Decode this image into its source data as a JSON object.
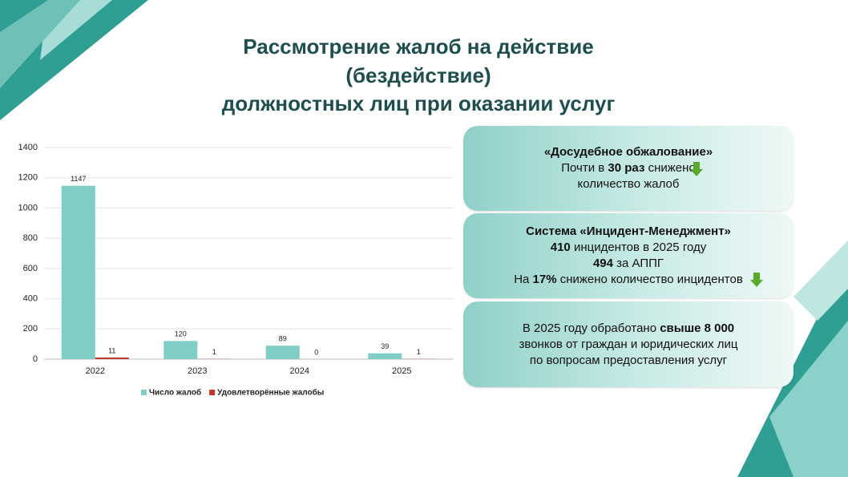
{
  "title_lines": [
    "Рассмотрение жалоб на действие",
    "(бездействие)",
    "должностных лиц при оказании услуг"
  ],
  "chart_data": {
    "type": "bar",
    "categories": [
      "2022",
      "2023",
      "2024",
      "2025"
    ],
    "series": [
      {
        "name": "Число жалоб",
        "color": "#7fcdc4",
        "values": [
          1147,
          120,
          89,
          39
        ]
      },
      {
        "name": "Удовлетворённые жалобы",
        "color": "#c0392b",
        "values": [
          11,
          1,
          0,
          1
        ]
      }
    ],
    "ylim": [
      0,
      1400
    ],
    "yticks": [
      0,
      200,
      400,
      600,
      800,
      1000,
      1200,
      1400
    ],
    "grid": true,
    "legend": "bottom"
  },
  "boxes": [
    {
      "lines": [
        [
          {
            "text": "«Досудебное обжалование»",
            "bold": true
          }
        ],
        [
          {
            "text": "Почти в ",
            "bold": false
          },
          {
            "text": "30 раз",
            "bold": true
          },
          {
            "text": " снижено",
            "bold": false
          }
        ],
        [
          {
            "text": "количество жалоб",
            "bold": false
          }
        ]
      ]
    },
    {
      "lines": [
        [
          {
            "text": "Система «Инцидент-Менеджмент»",
            "bold": true
          }
        ],
        [
          {
            "text": "410",
            "bold": true
          },
          {
            "text": " инцидентов в 2025 году",
            "bold": false
          }
        ],
        [
          {
            "text": "494",
            "bold": true
          },
          {
            "text": " за АППГ",
            "bold": false
          }
        ],
        [
          {
            "text": "На ",
            "bold": false
          },
          {
            "text": "17%",
            "bold": true
          },
          {
            "text": " снижено количество инцидентов",
            "bold": false
          }
        ]
      ]
    },
    {
      "lines": [
        [
          {
            "text": "В 2025 году обработано ",
            "bold": false
          },
          {
            "text": "свыше 8 000",
            "bold": true
          }
        ],
        [
          {
            "text": "звонков от граждан и юридических лиц",
            "bold": false
          }
        ],
        [
          {
            "text": "по вопросам предоставления услуг",
            "bold": false
          }
        ]
      ]
    }
  ]
}
